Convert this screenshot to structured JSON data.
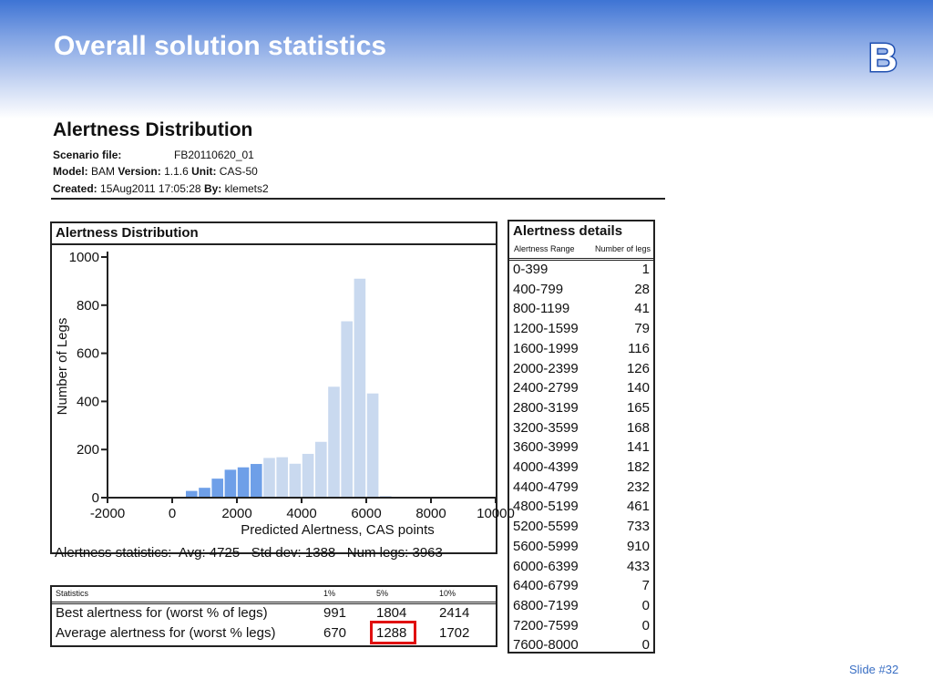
{
  "slide": {
    "title": "Overall solution statistics",
    "logo_letter": "B",
    "slide_number": "Slide #32"
  },
  "report": {
    "title": "Alertness Distribution",
    "scenario_label": "Scenario file:",
    "scenario_value": "FB20110620_01",
    "model_label": "Model:",
    "model_value": "BAM",
    "version_label": "Version:",
    "version_value": "1.1.6",
    "unit_label": "Unit:",
    "unit_value": "CAS-50",
    "created_label": "Created:",
    "created_value": "15Aug2011 17:05:28",
    "by_label": "By:",
    "by_value": "klemets2"
  },
  "panel": {
    "title": "Alertness Distribution"
  },
  "summary": {
    "label": "Alertness statistics:",
    "avg": "Avg: 4725",
    "std": "Std dev: 1388",
    "num": "Num legs: 3963"
  },
  "stats_table": {
    "headers": [
      "Statistics",
      "1%",
      "5%",
      "10%"
    ],
    "rows": [
      [
        "Best alertness for (worst % of legs)",
        "991",
        "1804",
        "2414"
      ],
      [
        "Average alertness for (worst % legs)",
        "670",
        "1288",
        "1702"
      ]
    ]
  },
  "details": {
    "title": "Alertness details",
    "col_range": "Alertness Range",
    "col_count": "Number of legs",
    "rows": [
      [
        "0-399",
        "1"
      ],
      [
        "400-799",
        "28"
      ],
      [
        "800-1199",
        "41"
      ],
      [
        "1200-1599",
        "79"
      ],
      [
        "1600-1999",
        "116"
      ],
      [
        "2000-2399",
        "126"
      ],
      [
        "2400-2799",
        "140"
      ],
      [
        "2800-3199",
        "165"
      ],
      [
        "3200-3599",
        "168"
      ],
      [
        "3600-3999",
        "141"
      ],
      [
        "4000-4399",
        "182"
      ],
      [
        "4400-4799",
        "232"
      ],
      [
        "4800-5199",
        "461"
      ],
      [
        "5200-5599",
        "733"
      ],
      [
        "5600-5999",
        "910"
      ],
      [
        "6000-6399",
        "433"
      ],
      [
        "6400-6799",
        "7"
      ],
      [
        "6800-7199",
        "0"
      ],
      [
        "7200-7599",
        "0"
      ],
      [
        "7600-8000",
        "0"
      ]
    ]
  },
  "chart_data": {
    "type": "bar",
    "xlabel": "Predicted Alertness, CAS points",
    "ylabel": "Number of Legs",
    "xlim": [
      -2000,
      10000
    ],
    "ylim": [
      0,
      1000
    ],
    "xticks": [
      -2000,
      0,
      2000,
      4000,
      6000,
      8000,
      10000
    ],
    "yticks": [
      0,
      200,
      400,
      600,
      800,
      1000
    ],
    "bin_width": 400,
    "bin_starts": [
      0,
      400,
      800,
      1200,
      1600,
      2000,
      2400,
      2800,
      3200,
      3600,
      4000,
      4400,
      4800,
      5200,
      5600,
      6000,
      6400,
      6800,
      7200,
      7600
    ],
    "values": [
      1,
      28,
      41,
      79,
      116,
      126,
      140,
      165,
      168,
      141,
      182,
      232,
      461,
      733,
      910,
      433,
      7,
      0,
      0,
      0
    ],
    "highlight_below": 2800,
    "colors": {
      "highlight": "#6e9fe8",
      "normal": "#c9d9ef",
      "axis": "#222222"
    }
  }
}
